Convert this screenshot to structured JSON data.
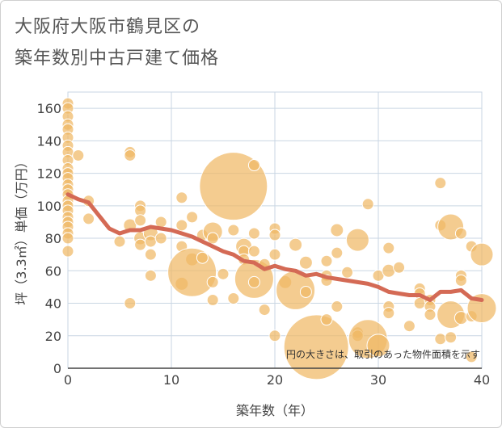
{
  "title": {
    "line1": "大阪府大阪市鶴見区の",
    "line2": "築年数別中古戸建て価格"
  },
  "colors": {
    "bubble_fill": "#f0b865",
    "bubble_stroke": "#ffffff",
    "line": "#d46a55",
    "grid": "#c9d6e3",
    "axis": "#444444"
  },
  "chart_data": {
    "type": "scatter",
    "xlabel": "築年数（年）",
    "ylabel": "坪（3.3㎡）単価（万円）",
    "xlim": [
      0,
      40
    ],
    "ylim": [
      0,
      170
    ],
    "xticks": [
      0,
      10,
      20,
      30,
      40
    ],
    "yticks": [
      0,
      20,
      40,
      60,
      80,
      100,
      120,
      140,
      160
    ],
    "grid": true,
    "note": "円の大きさは、取引のあった物件面積を示す",
    "bubbles": [
      {
        "x": 0,
        "y": 163,
        "s": 7
      },
      {
        "x": 0,
        "y": 160,
        "s": 7
      },
      {
        "x": 0,
        "y": 155,
        "s": 7
      },
      {
        "x": 0,
        "y": 150,
        "s": 7
      },
      {
        "x": 0,
        "y": 147,
        "s": 7
      },
      {
        "x": 0,
        "y": 142,
        "s": 7
      },
      {
        "x": 0,
        "y": 137,
        "s": 7
      },
      {
        "x": 0,
        "y": 133,
        "s": 7
      },
      {
        "x": 0,
        "y": 128,
        "s": 7
      },
      {
        "x": 0,
        "y": 123,
        "s": 7
      },
      {
        "x": 0,
        "y": 120,
        "s": 7
      },
      {
        "x": 0,
        "y": 117,
        "s": 7
      },
      {
        "x": 0,
        "y": 113,
        "s": 7
      },
      {
        "x": 0,
        "y": 110,
        "s": 7
      },
      {
        "x": 0,
        "y": 107,
        "s": 7
      },
      {
        "x": 0,
        "y": 103,
        "s": 7
      },
      {
        "x": 0,
        "y": 100,
        "s": 7
      },
      {
        "x": 0,
        "y": 97,
        "s": 7
      },
      {
        "x": 0,
        "y": 93,
        "s": 7
      },
      {
        "x": 0,
        "y": 90,
        "s": 7
      },
      {
        "x": 0,
        "y": 87,
        "s": 7
      },
      {
        "x": 0,
        "y": 83,
        "s": 7
      },
      {
        "x": 0,
        "y": 80,
        "s": 7
      },
      {
        "x": 0,
        "y": 72,
        "s": 7
      },
      {
        "x": 1,
        "y": 131,
        "s": 7
      },
      {
        "x": 2,
        "y": 103,
        "s": 7
      },
      {
        "x": 2,
        "y": 92,
        "s": 7
      },
      {
        "x": 5,
        "y": 78,
        "s": 7
      },
      {
        "x": 6,
        "y": 133,
        "s": 7
      },
      {
        "x": 6,
        "y": 131,
        "s": 7
      },
      {
        "x": 6,
        "y": 88,
        "s": 8
      },
      {
        "x": 6,
        "y": 40,
        "s": 7
      },
      {
        "x": 7,
        "y": 100,
        "s": 7
      },
      {
        "x": 7,
        "y": 97,
        "s": 7
      },
      {
        "x": 7,
        "y": 91,
        "s": 7
      },
      {
        "x": 7,
        "y": 80,
        "s": 8
      },
      {
        "x": 7,
        "y": 76,
        "s": 7
      },
      {
        "x": 8,
        "y": 83,
        "s": 9
      },
      {
        "x": 8,
        "y": 78,
        "s": 7
      },
      {
        "x": 8,
        "y": 70,
        "s": 7
      },
      {
        "x": 8,
        "y": 57,
        "s": 7
      },
      {
        "x": 9,
        "y": 90,
        "s": 7
      },
      {
        "x": 9,
        "y": 80,
        "s": 7
      },
      {
        "x": 11,
        "y": 105,
        "s": 7
      },
      {
        "x": 11,
        "y": 88,
        "s": 7
      },
      {
        "x": 11,
        "y": 75,
        "s": 7
      },
      {
        "x": 11,
        "y": 52,
        "s": 8
      },
      {
        "x": 12,
        "y": 93,
        "s": 7
      },
      {
        "x": 12,
        "y": 67,
        "s": 8
      },
      {
        "x": 12,
        "y": 59,
        "s": 30
      },
      {
        "x": 13,
        "y": 82,
        "s": 7
      },
      {
        "x": 13,
        "y": 68,
        "s": 7
      },
      {
        "x": 14,
        "y": 84,
        "s": 12
      },
      {
        "x": 14,
        "y": 80,
        "s": 7
      },
      {
        "x": 14,
        "y": 53,
        "s": 7
      },
      {
        "x": 14,
        "y": 42,
        "s": 7
      },
      {
        "x": 15,
        "y": 58,
        "s": 7
      },
      {
        "x": 16,
        "y": 112,
        "s": 42
      },
      {
        "x": 16,
        "y": 85,
        "s": 7
      },
      {
        "x": 16,
        "y": 43,
        "s": 7
      },
      {
        "x": 17,
        "y": 75,
        "s": 10
      },
      {
        "x": 17,
        "y": 72,
        "s": 7
      },
      {
        "x": 17,
        "y": 67,
        "s": 7
      },
      {
        "x": 18,
        "y": 125,
        "s": 7
      },
      {
        "x": 18,
        "y": 83,
        "s": 7
      },
      {
        "x": 18,
        "y": 72,
        "s": 7
      },
      {
        "x": 18,
        "y": 55,
        "s": 24
      },
      {
        "x": 18,
        "y": 53,
        "s": 7
      },
      {
        "x": 19,
        "y": 64,
        "s": 7
      },
      {
        "x": 19,
        "y": 36,
        "s": 7
      },
      {
        "x": 20,
        "y": 86,
        "s": 7
      },
      {
        "x": 20,
        "y": 82,
        "s": 7
      },
      {
        "x": 20,
        "y": 70,
        "s": 7
      },
      {
        "x": 20,
        "y": 20,
        "s": 7
      },
      {
        "x": 21,
        "y": 53,
        "s": 8
      },
      {
        "x": 22,
        "y": 76,
        "s": 8
      },
      {
        "x": 22,
        "y": 48,
        "s": 24
      },
      {
        "x": 23,
        "y": 65,
        "s": 8
      },
      {
        "x": 23,
        "y": 47,
        "s": 7
      },
      {
        "x": 24,
        "y": 13,
        "s": 40
      },
      {
        "x": 25,
        "y": 66,
        "s": 7
      },
      {
        "x": 25,
        "y": 57,
        "s": 7
      },
      {
        "x": 25,
        "y": 54,
        "s": 7
      },
      {
        "x": 25,
        "y": 30,
        "s": 7
      },
      {
        "x": 26,
        "y": 85,
        "s": 8
      },
      {
        "x": 26,
        "y": 71,
        "s": 7
      },
      {
        "x": 26,
        "y": 38,
        "s": 7
      },
      {
        "x": 27,
        "y": 59,
        "s": 7
      },
      {
        "x": 28,
        "y": 79,
        "s": 14
      },
      {
        "x": 28,
        "y": 22,
        "s": 7
      },
      {
        "x": 28,
        "y": 20,
        "s": 7
      },
      {
        "x": 29,
        "y": 101,
        "s": 7
      },
      {
        "x": 29,
        "y": 18,
        "s": 24
      },
      {
        "x": 30,
        "y": 57,
        "s": 7
      },
      {
        "x": 30,
        "y": 14,
        "s": 14
      },
      {
        "x": 31,
        "y": 74,
        "s": 7
      },
      {
        "x": 31,
        "y": 60,
        "s": 8
      },
      {
        "x": 31,
        "y": 38,
        "s": 7
      },
      {
        "x": 31,
        "y": 34,
        "s": 7
      },
      {
        "x": 32,
        "y": 62,
        "s": 7
      },
      {
        "x": 33,
        "y": 26,
        "s": 7
      },
      {
        "x": 34,
        "y": 49,
        "s": 7
      },
      {
        "x": 34,
        "y": 46,
        "s": 7
      },
      {
        "x": 34,
        "y": 40,
        "s": 7
      },
      {
        "x": 35,
        "y": 42,
        "s": 7
      },
      {
        "x": 35,
        "y": 38,
        "s": 7
      },
      {
        "x": 35,
        "y": 33,
        "s": 7
      },
      {
        "x": 36,
        "y": 114,
        "s": 7
      },
      {
        "x": 36,
        "y": 88,
        "s": 7
      },
      {
        "x": 36,
        "y": 18,
        "s": 7
      },
      {
        "x": 37,
        "y": 87,
        "s": 16
      },
      {
        "x": 37,
        "y": 33,
        "s": 17
      },
      {
        "x": 37,
        "y": 19,
        "s": 7
      },
      {
        "x": 38,
        "y": 83,
        "s": 7
      },
      {
        "x": 38,
        "y": 57,
        "s": 7
      },
      {
        "x": 38,
        "y": 54,
        "s": 7
      },
      {
        "x": 38,
        "y": 31,
        "s": 8
      },
      {
        "x": 39,
        "y": 75,
        "s": 7
      },
      {
        "x": 39,
        "y": 32,
        "s": 7
      },
      {
        "x": 39,
        "y": 7,
        "s": 7
      },
      {
        "x": 40,
        "y": 70,
        "s": 14
      },
      {
        "x": 40,
        "y": 37,
        "s": 18
      }
    ],
    "series": [
      {
        "x": [
          0,
          1,
          2,
          3,
          4,
          5,
          6,
          7,
          8,
          9,
          10,
          11,
          12,
          13,
          14,
          15,
          16,
          17,
          18,
          19,
          20,
          21,
          22,
          23,
          24,
          25,
          26,
          27,
          28,
          29,
          30,
          31,
          32,
          33,
          34,
          35,
          36,
          37,
          38,
          39,
          40
        ],
        "values": [
          107,
          104,
          102,
          94,
          86,
          83,
          85,
          85,
          87,
          86,
          85,
          83,
          81,
          78,
          75,
          72,
          70,
          66,
          65,
          61,
          63,
          61,
          60,
          57,
          58,
          56,
          55,
          54,
          53,
          52,
          50,
          47,
          46,
          45,
          45,
          42,
          47,
          47,
          48,
          43,
          42
        ]
      }
    ]
  }
}
